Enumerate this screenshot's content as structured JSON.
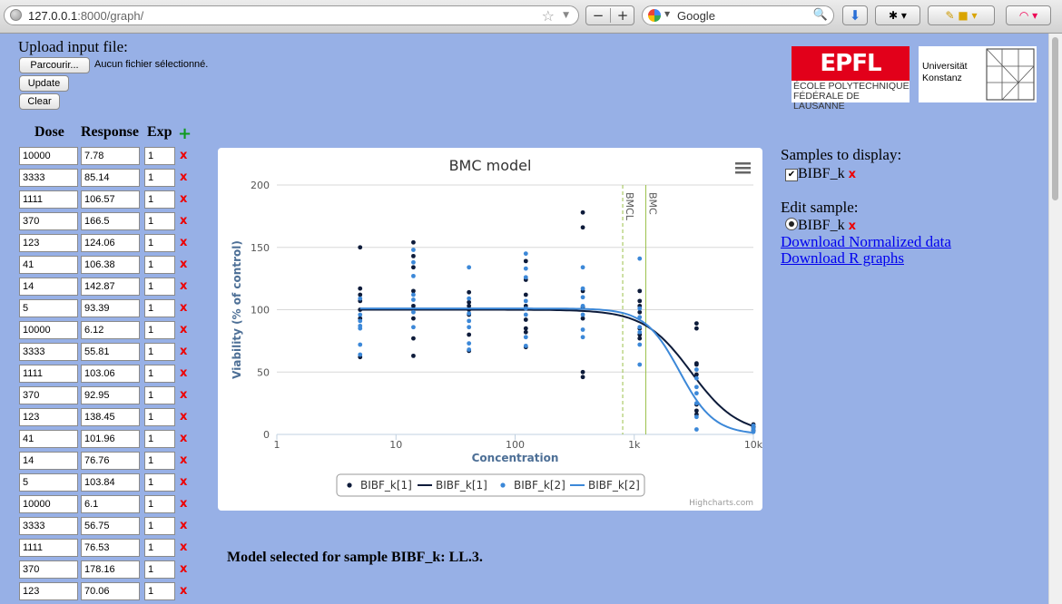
{
  "browser": {
    "url_host": "127.0.0.1",
    "url_rest": ":8000/graph/",
    "search_engine": "Google"
  },
  "upload": {
    "label": "Upload input file:",
    "browse_label": "Parcourir...",
    "no_file_text": "Aucun fichier sélectionné.",
    "update_label": "Update",
    "clear_label": "Clear"
  },
  "table": {
    "headers": {
      "dose": "Dose",
      "response": "Response",
      "exp": "Exp"
    },
    "add_icon": "+",
    "delete_icon": "x",
    "rows": [
      {
        "dose": "10000",
        "response": "7.78",
        "exp": "1"
      },
      {
        "dose": "3333",
        "response": "85.14",
        "exp": "1"
      },
      {
        "dose": "1111",
        "response": "106.57",
        "exp": "1"
      },
      {
        "dose": "370",
        "response": "166.5",
        "exp": "1"
      },
      {
        "dose": "123",
        "response": "124.06",
        "exp": "1"
      },
      {
        "dose": "41",
        "response": "106.38",
        "exp": "1"
      },
      {
        "dose": "14",
        "response": "142.87",
        "exp": "1"
      },
      {
        "dose": "5",
        "response": "93.39",
        "exp": "1"
      },
      {
        "dose": "10000",
        "response": "6.12",
        "exp": "1"
      },
      {
        "dose": "3333",
        "response": "55.81",
        "exp": "1"
      },
      {
        "dose": "1111",
        "response": "103.06",
        "exp": "1"
      },
      {
        "dose": "370",
        "response": "92.95",
        "exp": "1"
      },
      {
        "dose": "123",
        "response": "138.45",
        "exp": "1"
      },
      {
        "dose": "41",
        "response": "101.96",
        "exp": "1"
      },
      {
        "dose": "14",
        "response": "76.76",
        "exp": "1"
      },
      {
        "dose": "5",
        "response": "103.84",
        "exp": "1"
      },
      {
        "dose": "10000",
        "response": "6.1",
        "exp": "1"
      },
      {
        "dose": "3333",
        "response": "56.75",
        "exp": "1"
      },
      {
        "dose": "1111",
        "response": "76.53",
        "exp": "1"
      },
      {
        "dose": "370",
        "response": "178.16",
        "exp": "1"
      },
      {
        "dose": "123",
        "response": "70.06",
        "exp": "1"
      }
    ]
  },
  "right_panel": {
    "samples_label": "Samples to display:",
    "sample_name": "BIBF_k",
    "edit_label": "Edit sample:",
    "download_normalized": "Download Normalized data",
    "download_r": "Download R graphs"
  },
  "logos": {
    "epfl_mark": "EPFL",
    "epfl_sub1": "ÉCOLE POLYTECHNIQUE",
    "epfl_sub2": "FÉDÉRALE DE LAUSANNE",
    "uk_line1": "Universität",
    "uk_line2": "Konstanz"
  },
  "model_selected_text": "Model selected for sample BIBF_k: LL.3.",
  "chart_data": {
    "type": "scatter",
    "title": "BMC model",
    "xlabel": "Concentration",
    "ylabel": "Viability (% of control)",
    "x_scale": "log",
    "xlim": [
      1,
      10000
    ],
    "ylim": [
      0,
      200
    ],
    "x_ticks": [
      1,
      10,
      100,
      1000,
      10000
    ],
    "x_tick_labels": [
      "1",
      "10",
      "100",
      "1k",
      "10k"
    ],
    "y_ticks": [
      0,
      50,
      100,
      150,
      200
    ],
    "grid": true,
    "legend_position": "bottom",
    "credits": "Highcharts.com",
    "menu_icon": "hamburger-menu-icon",
    "plot_lines": [
      {
        "label": "BMCL",
        "x": 800,
        "style": "dashed",
        "color": "#9bc04a"
      },
      {
        "label": "BMC",
        "x": 1250,
        "style": "solid",
        "color": "#9bc04a"
      }
    ],
    "series": [
      {
        "name": "BIBF_k[1]",
        "kind": "scatter",
        "color": "#0d1b3a",
        "points": [
          [
            5,
            150
          ],
          [
            5,
            117
          ],
          [
            5,
            112
          ],
          [
            5,
            107
          ],
          [
            5,
            100
          ],
          [
            5,
            93
          ],
          [
            5,
            62
          ],
          [
            14,
            154
          ],
          [
            14,
            143
          ],
          [
            14,
            134
          ],
          [
            14,
            115
          ],
          [
            14,
            103
          ],
          [
            14,
            93
          ],
          [
            14,
            77
          ],
          [
            14,
            63
          ],
          [
            41,
            114
          ],
          [
            41,
            106
          ],
          [
            41,
            103
          ],
          [
            41,
            100
          ],
          [
            41,
            96
          ],
          [
            41,
            80
          ],
          [
            41,
            67
          ],
          [
            123,
            139
          ],
          [
            123,
            124
          ],
          [
            123,
            112
          ],
          [
            123,
            103
          ],
          [
            123,
            92
          ],
          [
            123,
            85
          ],
          [
            123,
            82
          ],
          [
            123,
            70
          ],
          [
            370,
            178
          ],
          [
            370,
            166
          ],
          [
            370,
            115
          ],
          [
            370,
            102
          ],
          [
            370,
            93
          ],
          [
            370,
            50
          ],
          [
            370,
            46
          ],
          [
            1111,
            115
          ],
          [
            1111,
            107
          ],
          [
            1111,
            103
          ],
          [
            1111,
            98
          ],
          [
            1111,
            85
          ],
          [
            1111,
            80
          ],
          [
            1111,
            77
          ],
          [
            3333,
            89
          ],
          [
            3333,
            85
          ],
          [
            3333,
            57
          ],
          [
            3333,
            56
          ],
          [
            3333,
            48
          ],
          [
            3333,
            24
          ],
          [
            3333,
            19
          ],
          [
            3333,
            16
          ],
          [
            10000,
            8
          ],
          [
            10000,
            6
          ],
          [
            10000,
            6
          ],
          [
            10000,
            3
          ]
        ]
      },
      {
        "name": "BIBF_k[1]",
        "kind": "line",
        "color": "#0d1b3a",
        "model": {
          "top": 100,
          "ec50": 3000,
          "slope": 2.2
        }
      },
      {
        "name": "BIBF_k[2]",
        "kind": "scatter",
        "color": "#3c88d8",
        "points": [
          [
            5,
            109
          ],
          [
            5,
            96
          ],
          [
            5,
            91
          ],
          [
            5,
            87
          ],
          [
            5,
            85
          ],
          [
            5,
            72
          ],
          [
            5,
            64
          ],
          [
            14,
            148
          ],
          [
            14,
            138
          ],
          [
            14,
            127
          ],
          [
            14,
            112
          ],
          [
            14,
            108
          ],
          [
            14,
            98
          ],
          [
            14,
            86
          ],
          [
            41,
            134
          ],
          [
            41,
            109
          ],
          [
            41,
            97
          ],
          [
            41,
            91
          ],
          [
            41,
            86
          ],
          [
            41,
            73
          ],
          [
            41,
            68
          ],
          [
            123,
            145
          ],
          [
            123,
            133
          ],
          [
            123,
            126
          ],
          [
            123,
            107
          ],
          [
            123,
            101
          ],
          [
            123,
            96
          ],
          [
            123,
            78
          ],
          [
            123,
            71
          ],
          [
            370,
            134
          ],
          [
            370,
            117
          ],
          [
            370,
            110
          ],
          [
            370,
            103
          ],
          [
            370,
            96
          ],
          [
            370,
            84
          ],
          [
            370,
            78
          ],
          [
            1111,
            141
          ],
          [
            1111,
            101
          ],
          [
            1111,
            94
          ],
          [
            1111,
            86
          ],
          [
            1111,
            82
          ],
          [
            1111,
            72
          ],
          [
            1111,
            56
          ],
          [
            3333,
            52
          ],
          [
            3333,
            45
          ],
          [
            3333,
            38
          ],
          [
            3333,
            33
          ],
          [
            3333,
            25
          ],
          [
            3333,
            14
          ],
          [
            3333,
            4
          ],
          [
            10000,
            7
          ],
          [
            10000,
            5
          ],
          [
            10000,
            4
          ],
          [
            10000,
            2
          ]
        ]
      },
      {
        "name": "BIBF_k[2]",
        "kind": "line",
        "color": "#3c88d8",
        "model": {
          "top": 101,
          "ec50": 2400,
          "slope": 3.0
        }
      }
    ]
  }
}
